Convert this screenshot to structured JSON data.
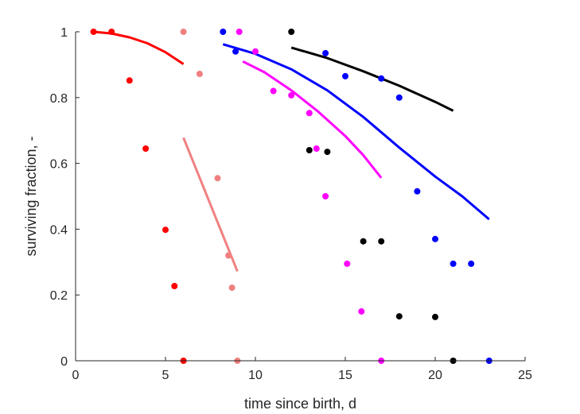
{
  "chart_data": {
    "type": "scatter",
    "title": "",
    "xlabel": "time since birth, d",
    "ylabel": "surviving fraction, -",
    "xlim": [
      0,
      25
    ],
    "ylim": [
      0,
      1
    ],
    "xticks": [
      "0",
      "5",
      "10",
      "15",
      "20",
      "25"
    ],
    "yticks": [
      "0",
      "0.2",
      "0.4",
      "0.6",
      "0.8",
      "1"
    ],
    "grid": false,
    "legend": "none",
    "series": [
      {
        "color": "#ff0000",
        "points": [
          [
            1,
            1.0
          ],
          [
            2,
            1.0
          ],
          [
            3,
            0.852
          ],
          [
            3.9,
            0.645
          ],
          [
            5,
            0.398
          ],
          [
            5.5,
            0.227
          ],
          [
            6,
            0.0
          ]
        ],
        "fit": [
          [
            1,
            1.0
          ],
          [
            2,
            0.995
          ],
          [
            3,
            0.983
          ],
          [
            4,
            0.965
          ],
          [
            5,
            0.938
          ],
          [
            6,
            0.902
          ]
        ]
      },
      {
        "color": "#f08080",
        "points": [
          [
            6,
            1.0
          ],
          [
            6.9,
            0.872
          ],
          [
            7.9,
            0.555
          ],
          [
            8.5,
            0.32
          ],
          [
            8.7,
            0.222
          ],
          [
            9,
            0.0
          ]
        ],
        "fit": [
          [
            6,
            0.678
          ],
          [
            9,
            0.272
          ]
        ]
      },
      {
        "color": "#ff00ff",
        "points": [
          [
            9.1,
            1.0
          ],
          [
            10,
            0.94
          ],
          [
            11,
            0.82
          ],
          [
            12,
            0.807
          ],
          [
            13,
            0.753
          ],
          [
            13.4,
            0.645
          ],
          [
            13.9,
            0.5
          ],
          [
            15.1,
            0.295
          ],
          [
            15.9,
            0.15
          ],
          [
            17,
            0.0
          ]
        ],
        "fit": [
          [
            9.3,
            0.91
          ],
          [
            10.5,
            0.877
          ],
          [
            12,
            0.822
          ],
          [
            13.5,
            0.757
          ],
          [
            15,
            0.683
          ],
          [
            16,
            0.625
          ],
          [
            17,
            0.556
          ]
        ]
      },
      {
        "color": "#0000ff",
        "points": [
          [
            8.2,
            1.0
          ],
          [
            8.9,
            0.94
          ],
          [
            13.9,
            0.935
          ],
          [
            15,
            0.865
          ],
          [
            17,
            0.858
          ],
          [
            18,
            0.8
          ],
          [
            19,
            0.515
          ],
          [
            20,
            0.37
          ],
          [
            21,
            0.295
          ],
          [
            22,
            0.295
          ],
          [
            23,
            0.0
          ]
        ],
        "fit": [
          [
            8.2,
            0.962
          ],
          [
            10,
            0.933
          ],
          [
            12,
            0.886
          ],
          [
            14,
            0.822
          ],
          [
            16,
            0.741
          ],
          [
            18,
            0.648
          ],
          [
            20,
            0.56
          ],
          [
            21.5,
            0.5
          ],
          [
            23,
            0.43
          ]
        ]
      },
      {
        "color": "#000000",
        "points": [
          [
            12,
            1.0
          ],
          [
            13,
            0.64
          ],
          [
            14,
            0.635
          ],
          [
            16,
            0.363
          ],
          [
            17,
            0.363
          ],
          [
            18,
            0.135
          ],
          [
            20,
            0.133
          ],
          [
            21,
            0.0
          ]
        ],
        "fit": [
          [
            12,
            0.952
          ],
          [
            14,
            0.92
          ],
          [
            16,
            0.88
          ],
          [
            18,
            0.836
          ],
          [
            20,
            0.787
          ],
          [
            21,
            0.76
          ]
        ]
      }
    ]
  }
}
